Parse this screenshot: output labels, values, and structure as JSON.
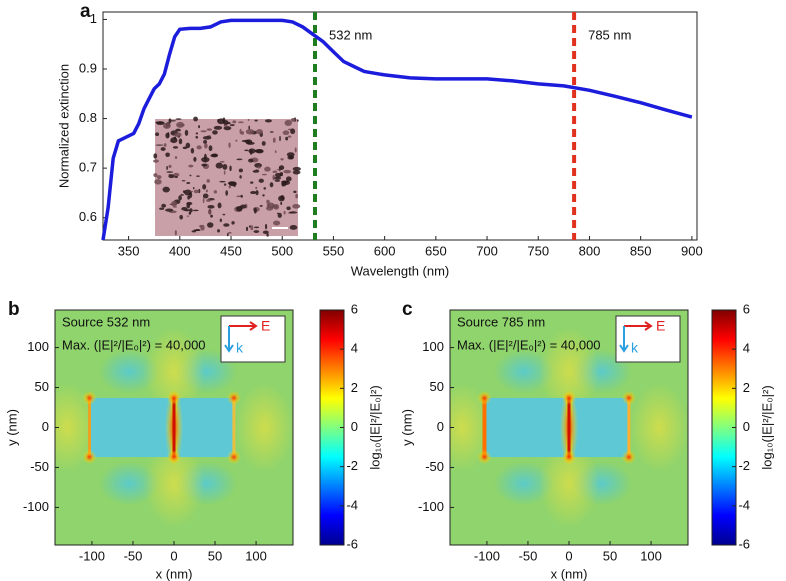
{
  "chart_data": [
    {
      "type": "line",
      "label": "a",
      "xlabel": "Wavelength (nm)",
      "ylabel": "Normalized extinction",
      "xlim": [
        325,
        905
      ],
      "ylim": [
        0.555,
        1.015
      ],
      "xticks": [
        350,
        400,
        450,
        500,
        550,
        600,
        650,
        700,
        750,
        800,
        850,
        900
      ],
      "yticks": [
        0.6,
        0.7,
        0.8,
        0.9,
        1
      ],
      "color": "#1c1cdc",
      "x": [
        325,
        330,
        335,
        340,
        345,
        350,
        355,
        360,
        365,
        370,
        375,
        380,
        385,
        390,
        395,
        400,
        410,
        420,
        430,
        440,
        450,
        475,
        500,
        510,
        520,
        530,
        540,
        550,
        560,
        570,
        580,
        600,
        625,
        650,
        675,
        700,
        725,
        750,
        775,
        800,
        825,
        850,
        875,
        900
      ],
      "values": [
        0.555,
        0.62,
        0.72,
        0.755,
        0.76,
        0.765,
        0.77,
        0.79,
        0.82,
        0.84,
        0.86,
        0.87,
        0.89,
        0.93,
        0.965,
        0.98,
        0.982,
        0.982,
        0.985,
        0.995,
        0.998,
        0.998,
        0.998,
        0.995,
        0.985,
        0.97,
        0.955,
        0.935,
        0.915,
        0.905,
        0.895,
        0.888,
        0.882,
        0.88,
        0.88,
        0.88,
        0.876,
        0.87,
        0.866,
        0.857,
        0.845,
        0.832,
        0.817,
        0.803
      ],
      "vlines": [
        {
          "x": 532,
          "label": "532 nm",
          "color": "#1e7d1e"
        },
        {
          "x": 785,
          "label": "785 nm",
          "color": "#e0301e"
        }
      ]
    },
    {
      "type": "heatmap",
      "label": "b",
      "source": "Source 532 nm",
      "max_text": "Max. (|E|²/|E₀|²) = 40,000",
      "xlabel": "x (nm)",
      "ylabel": "y (nm)",
      "colorbar_label": "log₁₀(|E|²/|E₀|²)",
      "xlim": [
        -145,
        145
      ],
      "ylim": [
        -147,
        147
      ],
      "xticks": [
        -100,
        -50,
        0,
        50,
        100
      ],
      "yticks": [
        -100,
        -50,
        0,
        50,
        100
      ],
      "clim": [
        -6,
        6
      ],
      "cticks": [
        -6,
        -4,
        -2,
        0,
        2,
        4,
        6
      ],
      "field_label": "E",
      "wave_label": "k"
    },
    {
      "type": "heatmap",
      "label": "c",
      "source": "Source 785 nm",
      "max_text": "Max. (|E|²/|E₀|²) = 40,000",
      "xlabel": "x (nm)",
      "ylabel": "y (nm)",
      "colorbar_label": "log₁₀(|E|²/|E₀|²)",
      "xlim": [
        -145,
        145
      ],
      "ylim": [
        -147,
        147
      ],
      "xticks": [
        -100,
        -50,
        0,
        50,
        100
      ],
      "yticks": [
        -100,
        -50,
        0,
        50,
        100
      ],
      "clim": [
        -6,
        6
      ],
      "cticks": [
        -6,
        -4,
        -2,
        0,
        2,
        4,
        6
      ],
      "field_label": "E",
      "wave_label": "k"
    }
  ]
}
